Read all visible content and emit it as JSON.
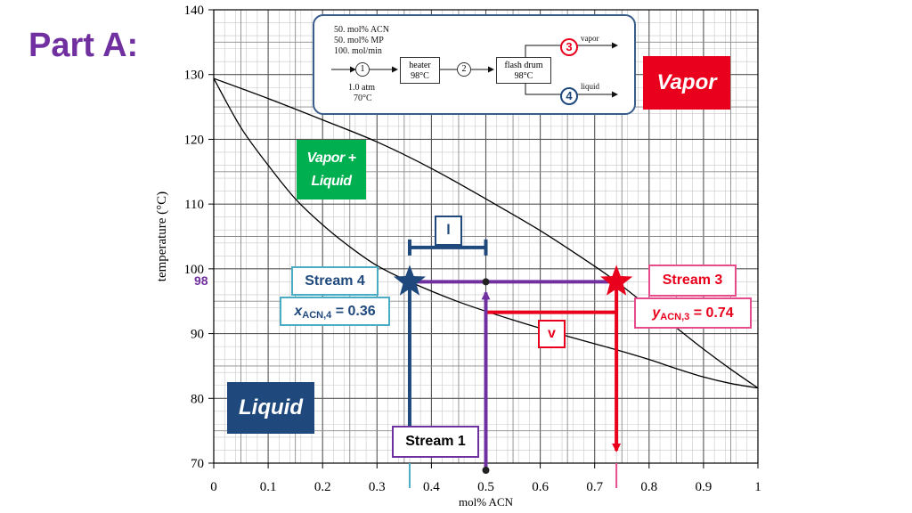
{
  "page": {
    "title": "Part A:"
  },
  "chart_data": {
    "type": "line",
    "xlabel": "mol% ACN",
    "ylabel": "temperature (°C)",
    "xlim": [
      0,
      1
    ],
    "ylim": [
      70,
      140
    ],
    "x_ticks": [
      "0",
      "0.1",
      "0.2",
      "0.3",
      "0.4",
      "0.5",
      "0.6",
      "0.7",
      "0.8",
      "0.9",
      "1"
    ],
    "y_ticks": [
      "70",
      "80",
      "90",
      "100",
      "110",
      "120",
      "130",
      "140"
    ],
    "grid": true,
    "series": [
      {
        "x": [
          0,
          0.05,
          0.1,
          0.15,
          0.2,
          0.25,
          0.3,
          0.36,
          0.45,
          0.55,
          0.65,
          0.74,
          0.8,
          0.85,
          0.9,
          0.95,
          1.0
        ],
        "y": [
          129.4,
          121.8,
          116.0,
          110.8,
          106.8,
          103.4,
          100.5,
          98.0,
          94.9,
          92.1,
          89.6,
          87.5,
          86.0,
          84.6,
          83.3,
          82.3,
          81.6
        ]
      },
      {
        "x": [
          0,
          0.1,
          0.2,
          0.3,
          0.4,
          0.5,
          0.6,
          0.7,
          0.74,
          0.8,
          0.85,
          0.9,
          0.95,
          1.0
        ],
        "y": [
          129.4,
          126.3,
          123.0,
          119.6,
          115.5,
          110.8,
          105.9,
          100.4,
          98.0,
          94.1,
          90.9,
          87.6,
          84.5,
          81.6
        ]
      }
    ],
    "operating_temperature": 98,
    "feed_x": 0.5,
    "stream4_x": 0.36,
    "stream3_y": 0.74,
    "bar_temperature": 93.3,
    "bracket_temperature": 103.3
  },
  "labels": {
    "vapor_region": "Vapor",
    "vapor_liquid_line1": "Vapor +",
    "vapor_liquid_line2": "Liquid",
    "liquid_region": "Liquid",
    "stream4": "Stream 4",
    "x4_symbol": "x",
    "x4_sub": "ACN,4",
    "x4_value": " = 0.36",
    "stream3": "Stream 3",
    "y3_symbol": "y",
    "y3_sub": "ACN,3",
    "y3_value": " = 0.74",
    "v_label": "v",
    "l_label": "l",
    "stream1": "Stream 1",
    "temp_marker": "98"
  },
  "flowsheet": {
    "feed_line1": "50. mol% ACN",
    "feed_line2": "50. mol% MP",
    "feed_line3": "100. mol/min",
    "stream1_num": "1",
    "feed_cond1": "1.0 atm",
    "feed_cond2": "70°C",
    "heater_name": "heater",
    "heater_temp": "98°C",
    "stream2_num": "2",
    "flash_name": "flash drum",
    "flash_temp": "98°C",
    "vapor_label": "vapor",
    "liquid_label": "liquid",
    "stream3_num": "3",
    "stream4_num": "4"
  },
  "colors": {
    "purple": "#7030a0",
    "red": "#e8001c",
    "navy": "#1f497d",
    "green": "#00b050",
    "light_blue": "#4bacc6",
    "pink": "#e64b8c"
  }
}
